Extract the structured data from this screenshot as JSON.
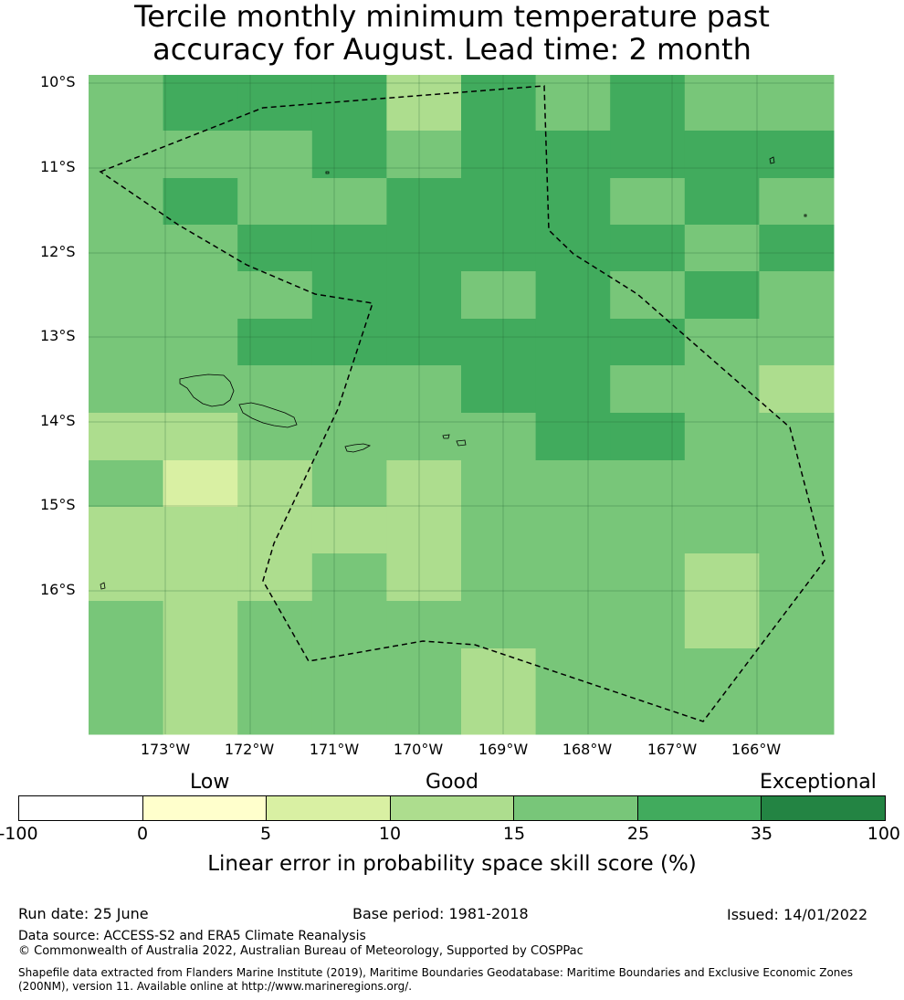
{
  "title": {
    "line1": "Tercile monthly minimum temperature past",
    "line2": "accuracy for August. Lead time: 2 month"
  },
  "map": {
    "lat_labels": [
      "10°S",
      "11°S",
      "12°S",
      "13°S",
      "14°S",
      "15°S",
      "16°S"
    ],
    "lon_labels": [
      "173°W",
      "172°W",
      "171°W",
      "170°W",
      "169°W",
      "168°W",
      "167°W",
      "166°W"
    ],
    "grid_colors": [
      [
        "#78c679",
        "#41ab5d",
        "#41ab5d",
        "#41ab5d",
        "#addd8e",
        "#41ab5d",
        "#78c679",
        "#41ab5d",
        "#78c679",
        "#78c679"
      ],
      [
        "#78c679",
        "#78c679",
        "#78c679",
        "#41ab5d",
        "#78c679",
        "#41ab5d",
        "#41ab5d",
        "#41ab5d",
        "#41ab5d",
        "#41ab5d"
      ],
      [
        "#78c679",
        "#41ab5d",
        "#78c679",
        "#78c679",
        "#41ab5d",
        "#41ab5d",
        "#41ab5d",
        "#78c679",
        "#41ab5d",
        "#78c679"
      ],
      [
        "#78c679",
        "#78c679",
        "#41ab5d",
        "#41ab5d",
        "#41ab5d",
        "#41ab5d",
        "#41ab5d",
        "#41ab5d",
        "#78c679",
        "#41ab5d"
      ],
      [
        "#78c679",
        "#78c679",
        "#78c679",
        "#41ab5d",
        "#41ab5d",
        "#78c679",
        "#41ab5d",
        "#78c679",
        "#41ab5d",
        "#78c679"
      ],
      [
        "#78c679",
        "#78c679",
        "#41ab5d",
        "#41ab5d",
        "#41ab5d",
        "#41ab5d",
        "#41ab5d",
        "#41ab5d",
        "#78c679",
        "#78c679"
      ],
      [
        "#78c679",
        "#78c679",
        "#78c679",
        "#78c679",
        "#78c679",
        "#41ab5d",
        "#41ab5d",
        "#78c679",
        "#78c679",
        "#addd8e"
      ],
      [
        "#addd8e",
        "#addd8e",
        "#78c679",
        "#78c679",
        "#78c679",
        "#78c679",
        "#41ab5d",
        "#41ab5d",
        "#78c679",
        "#78c679"
      ],
      [
        "#78c679",
        "#d9f0a3",
        "#addd8e",
        "#78c679",
        "#addd8e",
        "#78c679",
        "#78c679",
        "#78c679",
        "#78c679",
        "#78c679"
      ],
      [
        "#addd8e",
        "#addd8e",
        "#addd8e",
        "#addd8e",
        "#addd8e",
        "#78c679",
        "#78c679",
        "#78c679",
        "#78c679",
        "#78c679"
      ],
      [
        "#addd8e",
        "#addd8e",
        "#addd8e",
        "#78c679",
        "#addd8e",
        "#78c679",
        "#78c679",
        "#78c679",
        "#addd8e",
        "#78c679"
      ],
      [
        "#78c679",
        "#addd8e",
        "#78c679",
        "#78c679",
        "#78c679",
        "#78c679",
        "#78c679",
        "#78c679",
        "#addd8e",
        "#78c679"
      ],
      [
        "#78c679",
        "#addd8e",
        "#78c679",
        "#78c679",
        "#78c679",
        "#addd8e",
        "#78c679",
        "#78c679",
        "#78c679",
        "#78c679"
      ]
    ]
  },
  "legend": {
    "category_low": "Low",
    "category_good": "Good",
    "category_exceptional": "Exceptional",
    "colors": [
      "#ffffff",
      "#ffffcc",
      "#d9f0a3",
      "#addd8e",
      "#78c679",
      "#41ab5d",
      "#238443"
    ],
    "ticks": [
      "-100",
      "0",
      "5",
      "10",
      "15",
      "25",
      "35",
      "100"
    ],
    "label": "Linear error in probability space skill score (%)"
  },
  "footer": {
    "run_date": "Run date: 25 June",
    "base_period": "Base period: 1981-2018",
    "issued": "Issued: 14/01/2022",
    "data_source": "Data source: ACCESS-S2 and ERA5 Climate Reanalysis",
    "copyright": "© Commonwealth of Australia 2022, Australian Bureau of Meteorology, Supported by COSPPac",
    "shapefile": "Shapefile data extracted from Flanders Marine Institute (2019), Maritime Boundaries Geodatabase: Maritime Boundaries and Exclusive Economic Zones (200NM), version 11. Available online at http://www.marineregions.org/."
  }
}
